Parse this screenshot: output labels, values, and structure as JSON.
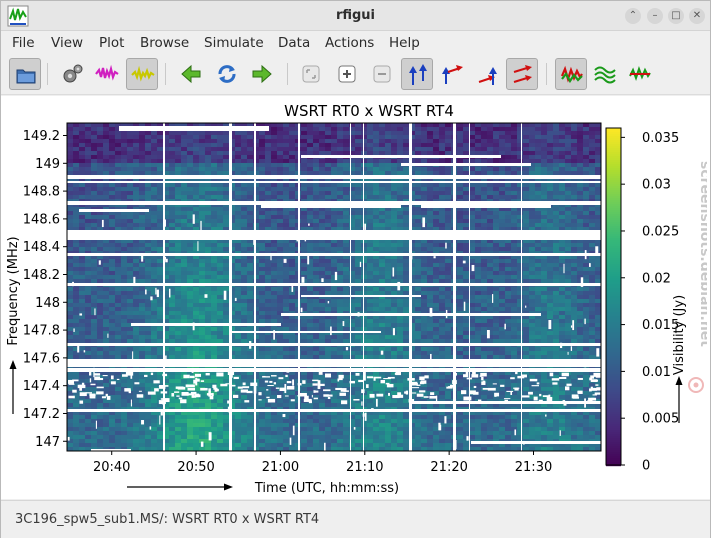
{
  "window": {
    "title": "rfigui"
  },
  "menu": [
    "File",
    "View",
    "Plot",
    "Browse",
    "Simulate",
    "Data",
    "Actions",
    "Help"
  ],
  "toolbar": {
    "buttons": [
      {
        "name": "open-icon",
        "pressed": true
      },
      {
        "name": "settings-icon",
        "pressed": false
      },
      {
        "name": "original-data-icon",
        "pressed": false
      },
      {
        "name": "processed-data-icon",
        "pressed": true
      },
      {
        "name": "back-arrow-icon",
        "pressed": false
      },
      {
        "name": "reload-icon",
        "pressed": false
      },
      {
        "name": "forward-arrow-icon",
        "pressed": false
      },
      {
        "name": "zoom-fit-icon",
        "pressed": false
      },
      {
        "name": "zoom-in-icon",
        "pressed": false
      },
      {
        "name": "zoom-out-icon",
        "pressed": false
      },
      {
        "name": "polarization-xx-icon",
        "pressed": true
      },
      {
        "name": "polarization-xy-icon",
        "pressed": false
      },
      {
        "name": "polarization-yx-icon",
        "pressed": false
      },
      {
        "name": "polarization-yy-icon",
        "pressed": true
      },
      {
        "name": "show-original-mask-icon",
        "pressed": true
      },
      {
        "name": "show-alternative-mask-icon",
        "pressed": false
      },
      {
        "name": "show-both-masks-icon",
        "pressed": false
      }
    ]
  },
  "chart_data": {
    "type": "heatmap",
    "title": "WSRT RT0 x WSRT RT4",
    "xlabel": "Time (UTC, hh:mm:ss)",
    "ylabel": "Frequency (MHz)",
    "colorbar_label": "Visibility (Jy)",
    "x_ticks": [
      "20:40",
      "20:50",
      "21:00",
      "21:10",
      "21:20",
      "21:30"
    ],
    "y_ticks": [
      "147",
      "147.2",
      "147.4",
      "147.6",
      "147.8",
      "148",
      "148.2",
      "148.4",
      "148.6",
      "148.8",
      "149",
      "149.2"
    ],
    "colorbar_ticks": [
      "0",
      "0.005",
      "0.01",
      "0.015",
      "0.02",
      "0.025",
      "0.03",
      "0.035"
    ],
    "colorbar_range": [
      0,
      0.036
    ],
    "colormap": "viridis",
    "mask_color": "#ffffff"
  },
  "status": {
    "text": "3C196_spw5_sub1.MS/: WSRT RT0 x WSRT RT4"
  },
  "watermark": {
    "text": "screenshots.debian.net"
  }
}
